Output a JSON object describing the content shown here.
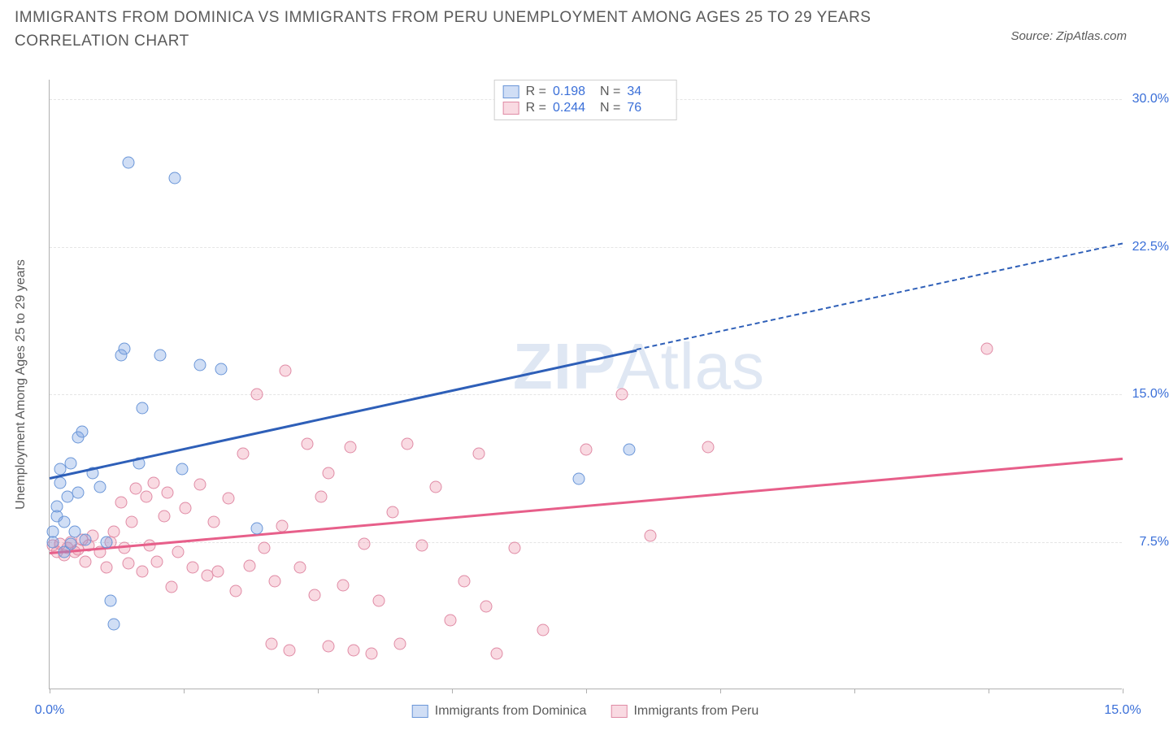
{
  "title": "IMMIGRANTS FROM DOMINICA VS IMMIGRANTS FROM PERU UNEMPLOYMENT AMONG AGES 25 TO 29 YEARS CORRELATION CHART",
  "source": "Source: ZipAtlas.com",
  "y_axis_title": "Unemployment Among Ages 25 to 29 years",
  "watermark_bold": "ZIP",
  "watermark_rest": "Atlas",
  "chart": {
    "type": "scatter",
    "background_color": "#ffffff",
    "grid_color": "#e5e5e5",
    "axis_color": "#b0b0b0",
    "label_color": "#3a6fd8",
    "text_color": "#5a5a5a",
    "title_fontsize": 19,
    "label_fontsize": 16,
    "marker_size": 15,
    "xlim": [
      0,
      15
    ],
    "ylim": [
      0,
      31
    ],
    "x_ticks": [
      0,
      1.875,
      3.75,
      5.625,
      7.5,
      9.375,
      11.25,
      13.125,
      15
    ],
    "x_tick_labels": {
      "0": "0.0%",
      "15": "15.0%"
    },
    "y_ticks": [
      7.5,
      15.0,
      22.5,
      30.0
    ],
    "y_tick_labels": [
      "7.5%",
      "15.0%",
      "22.5%",
      "30.0%"
    ]
  },
  "series": {
    "dominica": {
      "label": "Immigrants from Dominica",
      "color_fill": "rgba(120,160,225,0.35)",
      "color_stroke": "#6a96d8",
      "trend_color": "#2e5fb8",
      "trend_solid": {
        "x1": 0,
        "y1": 10.8,
        "x2": 8.2,
        "y2": 17.3
      },
      "trend_dashed": {
        "x1": 8.2,
        "y1": 17.3,
        "x2": 15,
        "y2": 22.7
      },
      "R": "0.198",
      "N": "34",
      "points": [
        [
          0.05,
          7.5
        ],
        [
          0.05,
          8.0
        ],
        [
          0.1,
          8.8
        ],
        [
          0.1,
          9.3
        ],
        [
          0.15,
          10.5
        ],
        [
          0.15,
          11.2
        ],
        [
          0.2,
          7.0
        ],
        [
          0.2,
          8.5
        ],
        [
          0.25,
          9.8
        ],
        [
          0.3,
          7.4
        ],
        [
          0.3,
          11.5
        ],
        [
          0.35,
          8.0
        ],
        [
          0.4,
          10.0
        ],
        [
          0.4,
          12.8
        ],
        [
          0.45,
          13.1
        ],
        [
          0.5,
          7.6
        ],
        [
          0.6,
          11.0
        ],
        [
          0.7,
          10.3
        ],
        [
          0.8,
          7.5
        ],
        [
          0.85,
          4.5
        ],
        [
          0.9,
          3.3
        ],
        [
          1.0,
          17.0
        ],
        [
          1.05,
          17.3
        ],
        [
          1.1,
          26.8
        ],
        [
          1.25,
          11.5
        ],
        [
          1.3,
          14.3
        ],
        [
          1.55,
          17.0
        ],
        [
          1.75,
          26.0
        ],
        [
          1.85,
          11.2
        ],
        [
          2.1,
          16.5
        ],
        [
          2.4,
          16.3
        ],
        [
          2.9,
          8.2
        ],
        [
          7.4,
          10.7
        ],
        [
          8.1,
          12.2
        ]
      ]
    },
    "peru": {
      "label": "Immigrants from Peru",
      "color_fill": "rgba(235,140,165,0.32)",
      "color_stroke": "#e08ba5",
      "trend_color": "#e75f8a",
      "trend_solid": {
        "x1": 0,
        "y1": 7.0,
        "x2": 15,
        "y2": 11.8
      },
      "R": "0.244",
      "N": "76",
      "points": [
        [
          0.05,
          7.3
        ],
        [
          0.1,
          7.0
        ],
        [
          0.15,
          7.4
        ],
        [
          0.2,
          6.8
        ],
        [
          0.25,
          7.2
        ],
        [
          0.3,
          7.5
        ],
        [
          0.35,
          7.0
        ],
        [
          0.4,
          7.1
        ],
        [
          0.45,
          7.6
        ],
        [
          0.5,
          6.5
        ],
        [
          0.55,
          7.3
        ],
        [
          0.6,
          7.8
        ],
        [
          0.7,
          7.0
        ],
        [
          0.8,
          6.2
        ],
        [
          0.85,
          7.5
        ],
        [
          0.9,
          8.0
        ],
        [
          1.0,
          9.5
        ],
        [
          1.05,
          7.2
        ],
        [
          1.1,
          6.4
        ],
        [
          1.15,
          8.5
        ],
        [
          1.2,
          10.2
        ],
        [
          1.3,
          6.0
        ],
        [
          1.35,
          9.8
        ],
        [
          1.4,
          7.3
        ],
        [
          1.45,
          10.5
        ],
        [
          1.5,
          6.5
        ],
        [
          1.6,
          8.8
        ],
        [
          1.65,
          10.0
        ],
        [
          1.7,
          5.2
        ],
        [
          1.8,
          7.0
        ],
        [
          1.9,
          9.2
        ],
        [
          2.0,
          6.2
        ],
        [
          2.1,
          10.4
        ],
        [
          2.2,
          5.8
        ],
        [
          2.3,
          8.5
        ],
        [
          2.35,
          6.0
        ],
        [
          2.5,
          9.7
        ],
        [
          2.6,
          5.0
        ],
        [
          2.7,
          12.0
        ],
        [
          2.8,
          6.3
        ],
        [
          2.9,
          15.0
        ],
        [
          3.0,
          7.2
        ],
        [
          3.1,
          2.3
        ],
        [
          3.15,
          5.5
        ],
        [
          3.25,
          8.3
        ],
        [
          3.3,
          16.2
        ],
        [
          3.35,
          2.0
        ],
        [
          3.5,
          6.2
        ],
        [
          3.6,
          12.5
        ],
        [
          3.7,
          4.8
        ],
        [
          3.8,
          9.8
        ],
        [
          3.9,
          2.2
        ],
        [
          3.9,
          11.0
        ],
        [
          4.1,
          5.3
        ],
        [
          4.2,
          12.3
        ],
        [
          4.25,
          2.0
        ],
        [
          4.4,
          7.4
        ],
        [
          4.5,
          1.8
        ],
        [
          4.6,
          4.5
        ],
        [
          4.8,
          9.0
        ],
        [
          4.9,
          2.3
        ],
        [
          5.0,
          12.5
        ],
        [
          5.2,
          7.3
        ],
        [
          5.4,
          10.3
        ],
        [
          5.6,
          3.5
        ],
        [
          5.8,
          5.5
        ],
        [
          6.0,
          12.0
        ],
        [
          6.1,
          4.2
        ],
        [
          6.25,
          1.8
        ],
        [
          6.5,
          7.2
        ],
        [
          6.9,
          3.0
        ],
        [
          7.5,
          12.2
        ],
        [
          8.0,
          15.0
        ],
        [
          8.4,
          7.8
        ],
        [
          9.2,
          12.3
        ],
        [
          13.1,
          17.3
        ]
      ]
    }
  }
}
